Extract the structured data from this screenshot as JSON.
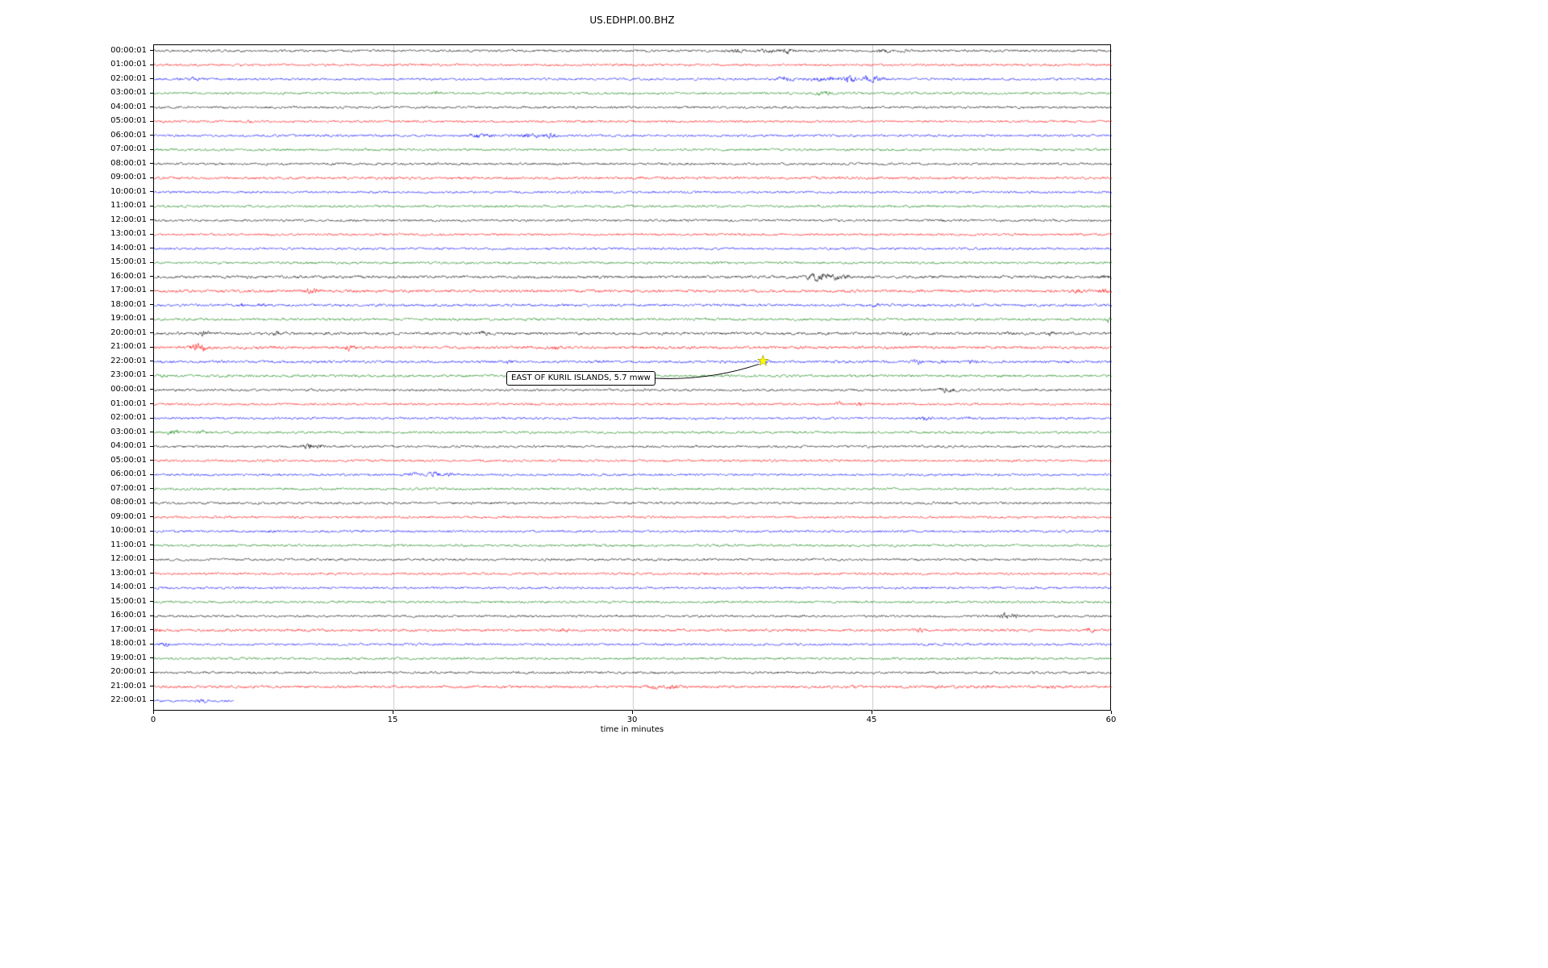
{
  "chart_data": {
    "type": "line",
    "subtype": "seismogram-dayplot",
    "title": "US.EDHPI.00.BHZ",
    "xlabel": "time in minutes",
    "xlim": [
      0,
      60
    ],
    "x_ticks": [
      0,
      15,
      30,
      45,
      60
    ],
    "grid": "vertical-gridlines-at-15-30-45",
    "legend": "none",
    "minutes_per_row": 60,
    "colors": {
      "k": "#000000",
      "r": "#ff0000",
      "b": "#0000ff",
      "g": "#008000"
    },
    "annotation": {
      "text": "EAST OF KURIL ISLANDS, 5.7 mww",
      "row_index": 22,
      "row_label": "22:00:01",
      "minute": 38.2,
      "marker": "star",
      "marker_color": "#ffff00"
    },
    "rows": [
      {
        "label": "00:00:01",
        "color": "k",
        "events": [
          [
            36.5,
            1.8,
            0.4
          ],
          [
            38.5,
            2.2,
            0.5
          ],
          [
            39.6,
            2.6,
            0.4
          ],
          [
            45.8,
            2.0,
            0.5
          ],
          [
            47.0,
            1.6,
            0.3
          ]
        ]
      },
      {
        "label": "01:00:01",
        "color": "r",
        "events": []
      },
      {
        "label": "02:00:01",
        "color": "b",
        "events": [
          [
            2.5,
            2.0,
            0.3
          ],
          [
            39.5,
            2.2,
            0.6
          ],
          [
            41.5,
            2.6,
            0.5
          ],
          [
            42.5,
            2.2,
            0.4
          ],
          [
            43.6,
            3.5,
            0.35
          ],
          [
            44.8,
            4.5,
            0.3
          ],
          [
            45.4,
            2.5,
            0.3
          ]
        ]
      },
      {
        "label": "03:00:01",
        "color": "g",
        "events": [
          [
            17.6,
            1.6,
            0.3
          ],
          [
            42.0,
            2.2,
            0.4
          ]
        ]
      },
      {
        "label": "04:00:01",
        "color": "k",
        "events": []
      },
      {
        "label": "05:00:01",
        "color": "r",
        "events": [
          [
            5.9,
            2.2,
            0.15
          ]
        ]
      },
      {
        "label": "06:00:01",
        "color": "b",
        "events": [
          [
            20.3,
            2.2,
            0.5
          ],
          [
            21.0,
            1.8,
            0.3
          ],
          [
            23.6,
            2.6,
            0.6
          ],
          [
            24.8,
            2.2,
            0.4
          ]
        ]
      },
      {
        "label": "07:00:01",
        "color": "g",
        "events": []
      },
      {
        "label": "08:00:01",
        "color": "k",
        "events": []
      },
      {
        "label": "09:00:01",
        "color": "r",
        "noise": 1.1,
        "events": []
      },
      {
        "label": "10:00:01",
        "color": "b",
        "events": []
      },
      {
        "label": "11:00:01",
        "color": "g",
        "events": []
      },
      {
        "label": "12:00:01",
        "color": "k",
        "events": [
          [
            49.5,
            1.5,
            0.3
          ]
        ]
      },
      {
        "label": "13:00:01",
        "color": "r",
        "events": []
      },
      {
        "label": "14:00:01",
        "color": "b",
        "events": []
      },
      {
        "label": "15:00:01",
        "color": "g",
        "events": []
      },
      {
        "label": "16:00:01",
        "color": "k",
        "noise": 1.15,
        "events": [
          [
            41.3,
            3.2,
            0.4
          ],
          [
            41.9,
            2.8,
            0.3
          ],
          [
            42.6,
            2.4,
            0.4
          ],
          [
            43.3,
            2.0,
            0.3
          ],
          [
            59.6,
            2.2,
            0.3
          ]
        ]
      },
      {
        "label": "17:00:01",
        "color": "r",
        "noise": 1.2,
        "events": [
          [
            9.6,
            2.4,
            0.3
          ],
          [
            10.2,
            1.8,
            0.2
          ],
          [
            57.8,
            2.0,
            0.3
          ],
          [
            59.5,
            1.8,
            0.3
          ]
        ]
      },
      {
        "label": "18:00:01",
        "color": "b",
        "noise": 1.1,
        "events": [
          [
            5.5,
            1.9,
            0.25
          ],
          [
            6.6,
            1.9,
            0.25
          ],
          [
            45.2,
            1.7,
            0.3
          ]
        ]
      },
      {
        "label": "19:00:01",
        "color": "g",
        "noise": 1.05,
        "events": [
          [
            59.8,
            2.4,
            0.2
          ]
        ]
      },
      {
        "label": "20:00:01",
        "color": "k",
        "noise": 1.15,
        "events": [
          [
            3.2,
            2.4,
            0.3
          ],
          [
            7.7,
            2.6,
            0.25
          ],
          [
            20.6,
            2.0,
            0.3
          ],
          [
            47.2,
            1.6,
            0.3
          ],
          [
            53.6,
            1.7,
            0.3
          ],
          [
            56.2,
            1.8,
            0.3
          ]
        ]
      },
      {
        "label": "21:00:01",
        "color": "r",
        "noise": 1.2,
        "events": [
          [
            2.6,
            2.8,
            0.4
          ],
          [
            3.1,
            2.2,
            0.3
          ],
          [
            12.3,
            2.4,
            0.35
          ],
          [
            25.2,
            1.6,
            0.3
          ]
        ]
      },
      {
        "label": "22:00:01",
        "color": "b",
        "noise": 1.1,
        "events": [
          [
            22.3,
            1.7,
            0.3
          ],
          [
            27.8,
            1.6,
            0.3
          ],
          [
            38.2,
            1.5,
            0.3
          ],
          [
            47.8,
            1.9,
            0.3
          ],
          [
            49.3,
            1.6,
            0.25
          ],
          [
            51.3,
            2.0,
            0.3
          ]
        ]
      },
      {
        "label": "23:00:01",
        "color": "g",
        "noise": 1.05,
        "events": [
          [
            0.5,
            1.8,
            0.3
          ]
        ]
      },
      {
        "label": "00:00:01",
        "color": "k",
        "events": [
          [
            49.5,
            2.4,
            0.35
          ],
          [
            50.1,
            1.9,
            0.25
          ]
        ]
      },
      {
        "label": "01:00:01",
        "color": "r",
        "events": [
          [
            42.8,
            2.4,
            0.25
          ],
          [
            44.2,
            2.4,
            0.25
          ]
        ]
      },
      {
        "label": "02:00:01",
        "color": "b",
        "events": [
          [
            48.3,
            2.0,
            0.3
          ],
          [
            50.8,
            1.6,
            0.3
          ]
        ]
      },
      {
        "label": "03:00:01",
        "color": "g",
        "events": [
          [
            1.2,
            2.4,
            0.4
          ],
          [
            3.0,
            2.0,
            0.35
          ]
        ]
      },
      {
        "label": "04:00:01",
        "color": "k",
        "events": [
          [
            9.6,
            2.8,
            0.35
          ],
          [
            10.4,
            2.4,
            0.3
          ]
        ]
      },
      {
        "label": "05:00:01",
        "color": "r",
        "events": []
      },
      {
        "label": "06:00:01",
        "color": "b",
        "events": [
          [
            16.2,
            1.9,
            0.4
          ],
          [
            17.6,
            2.8,
            0.4
          ],
          [
            18.6,
            1.9,
            0.3
          ]
        ]
      },
      {
        "label": "07:00:01",
        "color": "g",
        "events": []
      },
      {
        "label": "08:00:01",
        "color": "k",
        "events": []
      },
      {
        "label": "09:00:01",
        "color": "r",
        "events": []
      },
      {
        "label": "10:00:01",
        "color": "b",
        "events": [
          [
            7.3,
            1.6,
            0.2
          ]
        ]
      },
      {
        "label": "11:00:01",
        "color": "g",
        "events": []
      },
      {
        "label": "12:00:01",
        "color": "k",
        "events": []
      },
      {
        "label": "13:00:01",
        "color": "r",
        "events": []
      },
      {
        "label": "14:00:01",
        "color": "b",
        "events": []
      },
      {
        "label": "15:00:01",
        "color": "g",
        "events": []
      },
      {
        "label": "16:00:01",
        "color": "k",
        "events": [
          [
            53.3,
            3.0,
            0.3
          ],
          [
            54.0,
            2.6,
            0.3
          ]
        ]
      },
      {
        "label": "17:00:01",
        "color": "r",
        "noise": 1.1,
        "events": [
          [
            0.3,
            2.4,
            0.3
          ],
          [
            25.7,
            2.0,
            0.25
          ],
          [
            48.0,
            1.9,
            0.3
          ],
          [
            58.6,
            2.2,
            0.3
          ]
        ]
      },
      {
        "label": "18:00:01",
        "color": "b",
        "events": [
          [
            0.7,
            2.4,
            0.3
          ]
        ]
      },
      {
        "label": "19:00:01",
        "color": "g",
        "events": []
      },
      {
        "label": "20:00:01",
        "color": "k",
        "events": []
      },
      {
        "label": "21:00:01",
        "color": "r",
        "noise": 1.15,
        "events": [
          [
            31.2,
            1.9,
            0.4
          ],
          [
            32.6,
            2.3,
            0.4
          ],
          [
            43.9,
            1.5,
            0.3
          ],
          [
            49.2,
            1.5,
            0.3
          ],
          [
            52.3,
            1.5,
            0.3
          ],
          [
            56.2,
            1.5,
            0.3
          ]
        ]
      },
      {
        "label": "22:00:01",
        "color": "b",
        "end": 5.0,
        "events": [
          [
            3.0,
            1.9,
            0.3
          ]
        ]
      }
    ]
  }
}
